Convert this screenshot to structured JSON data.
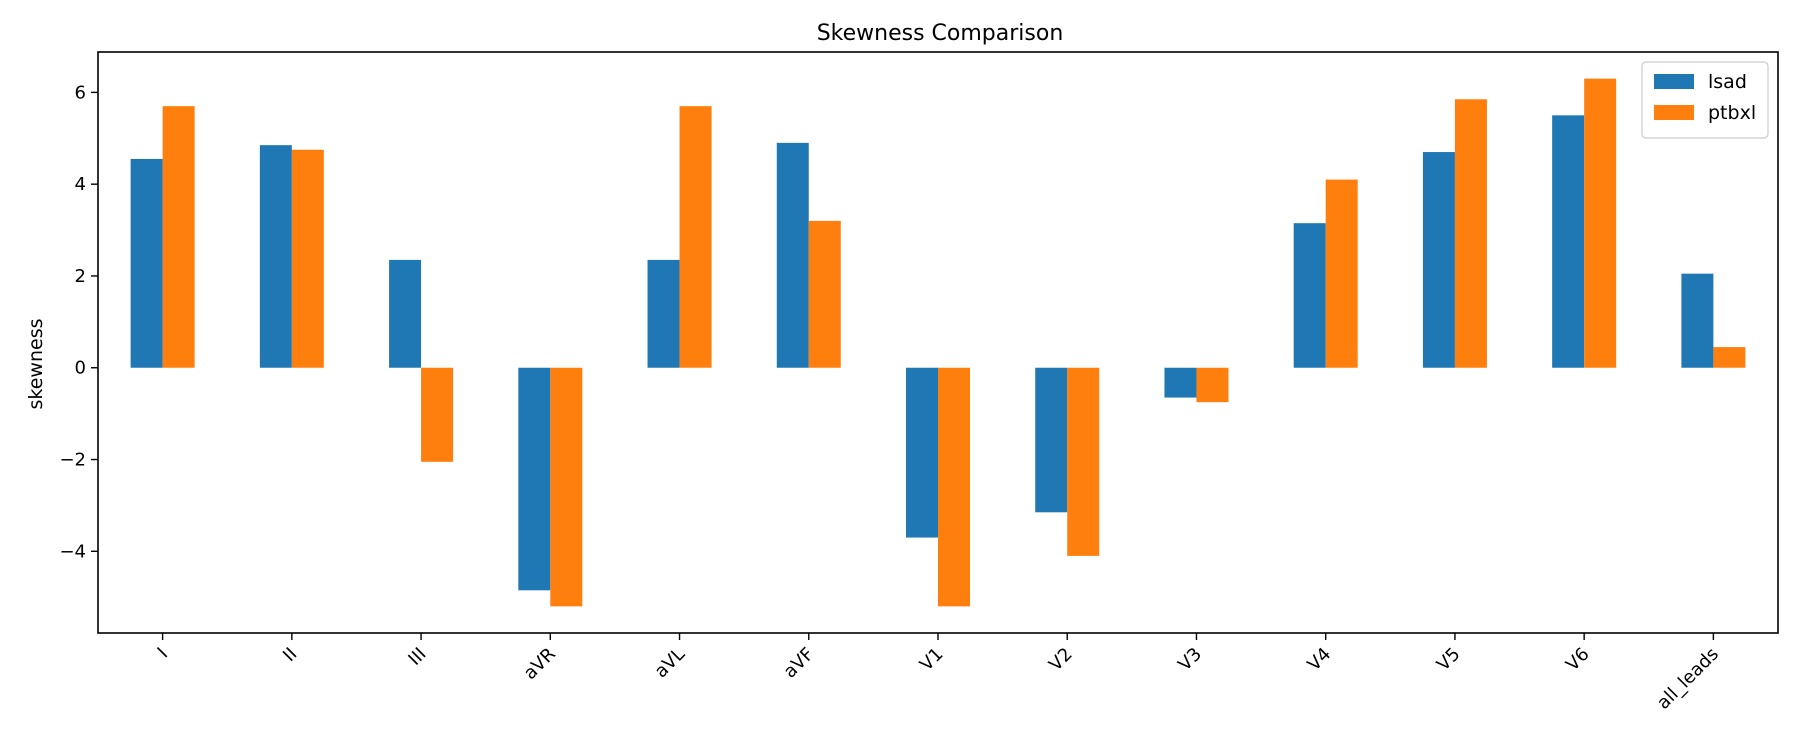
{
  "chart_data": {
    "type": "bar",
    "title": "Skewness Comparison",
    "xlabel": "",
    "ylabel": "skewness",
    "categories": [
      "I",
      "II",
      "III",
      "aVR",
      "aVL",
      "aVF",
      "V1",
      "V2",
      "V3",
      "V4",
      "V5",
      "V6",
      "all_leads"
    ],
    "series": [
      {
        "name": "lsad",
        "color": "#1f77b4",
        "values": [
          4.55,
          4.85,
          2.35,
          -4.85,
          2.35,
          4.9,
          -3.7,
          -3.15,
          -0.65,
          3.15,
          4.7,
          5.5,
          2.05
        ]
      },
      {
        "name": "ptbxl",
        "color": "#ff7f0e",
        "values": [
          5.7,
          4.75,
          -2.05,
          -5.2,
          5.7,
          3.2,
          -5.2,
          -4.1,
          -0.75,
          4.1,
          5.85,
          6.3,
          0.45
        ]
      }
    ],
    "ylim": [
      -5.78,
      6.88
    ],
    "yticks": [
      -4,
      -2,
      0,
      2,
      4,
      6
    ],
    "ytick_labels": [
      "−4",
      "−2",
      "0",
      "2",
      "4",
      "6"
    ],
    "grid": false,
    "legend_position": "top-right"
  }
}
